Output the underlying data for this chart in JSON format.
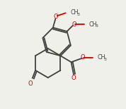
{
  "bg_color": "#f0f0eb",
  "bond_color": "#404040",
  "heteroatom_color": "#cc0000",
  "bond_width": 1.3,
  "figsize": [
    1.78,
    1.53
  ],
  "dpi": 100,
  "xlim": [
    0,
    10
  ],
  "ylim": [
    0,
    8.6
  ]
}
